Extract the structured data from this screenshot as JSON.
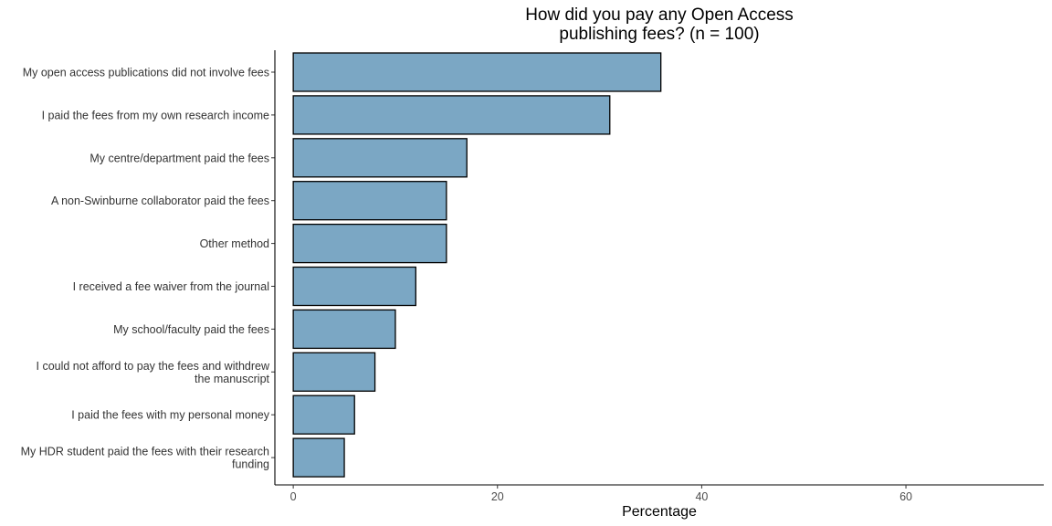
{
  "chart_data": {
    "type": "bar",
    "orientation": "horizontal",
    "title_lines": [
      "How did you pay any Open Access",
      "publishing fees? (n = 100)"
    ],
    "xlabel": "Percentage",
    "ylabel": "",
    "xlim": [
      -1.8,
      73.5
    ],
    "xticks": [
      0,
      20,
      40,
      60
    ],
    "grid": false,
    "bar_color": "#7ba7c4",
    "bar_border": "#000000",
    "categories": [
      [
        "My open access publications did not involve fees"
      ],
      [
        "I paid the fees from my own research income"
      ],
      [
        "My centre/department paid the fees"
      ],
      [
        "A non-Swinburne collaborator paid the fees"
      ],
      [
        "Other method"
      ],
      [
        "I received a fee waiver from the journal"
      ],
      [
        "My school/faculty paid the fees"
      ],
      [
        "I could not afford to pay the fees and withdrew",
        "the manuscript"
      ],
      [
        "I paid the fees with my personal money"
      ],
      [
        "My HDR student paid the fees with their research",
        "funding"
      ]
    ],
    "values": [
      36,
      31,
      17,
      15,
      15,
      12,
      10,
      8,
      6,
      5
    ]
  }
}
